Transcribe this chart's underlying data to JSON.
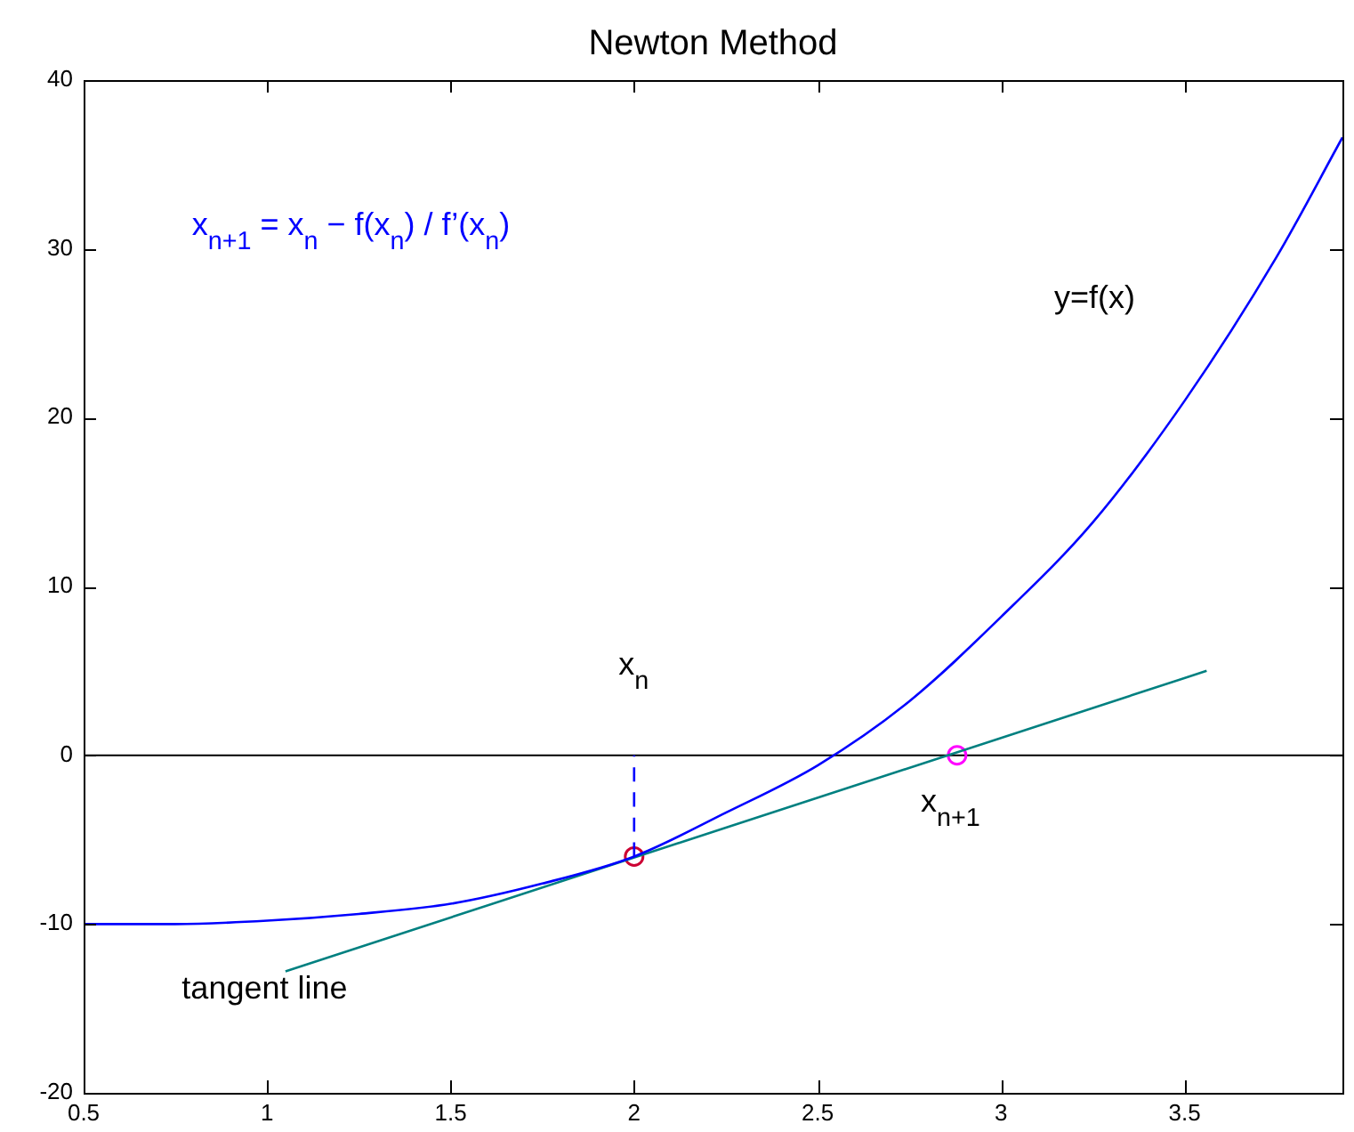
{
  "chart_data": {
    "type": "line",
    "title": "Newton Method",
    "series": [
      {
        "color": "#0000ff",
        "x": [
          0.5,
          0.75,
          1,
          1.25,
          1.5,
          1.75,
          2,
          2.25,
          2.5,
          2.75,
          3,
          3.25,
          3.5,
          3.75,
          3.93
        ],
        "values": [
          -10,
          -10,
          -9.8,
          -9.4,
          -8.8,
          -7.6,
          -6,
          -3.4,
          -0.6,
          3.2,
          8.2,
          13.8,
          21,
          29.5,
          36.6
        ]
      },
      {
        "type": "line",
        "color": "#008080",
        "x": [
          1.05,
          3.56
        ],
        "values": [
          -12.8,
          5
        ]
      },
      {
        "type": "line",
        "color": "#0000ff",
        "line_style": "dashed",
        "x": [
          2,
          2
        ],
        "values": [
          -6,
          0
        ]
      },
      {
        "type": "scatter",
        "color": "#cc0033",
        "marker": "circle",
        "x": [
          2
        ],
        "values": [
          -6
        ]
      },
      {
        "type": "scatter",
        "color": "#ff00ff",
        "marker": "circle",
        "x": [
          2.88
        ],
        "values": [
          0
        ]
      }
    ],
    "ref_lines": [
      {
        "axis": "y",
        "value": 0,
        "color": "#000000"
      }
    ],
    "annotations": [
      "x$_{n+1}$ = x$_{n}$ − f(x$_{n}$) / f’(x$_{n}$)",
      "y=f(x)",
      "x$_{n}$",
      "x$_{n+1}$",
      "tangent line"
    ],
    "xlim": [
      0.5,
      3.93
    ],
    "xticks": [
      0.5,
      1,
      1.5,
      2,
      2.5,
      3,
      3.5
    ],
    "ylim": [
      -20,
      40
    ],
    "yticks": [
      -20,
      -10,
      0,
      10,
      20,
      30,
      40
    ],
    "grid": false,
    "legend": false
  }
}
